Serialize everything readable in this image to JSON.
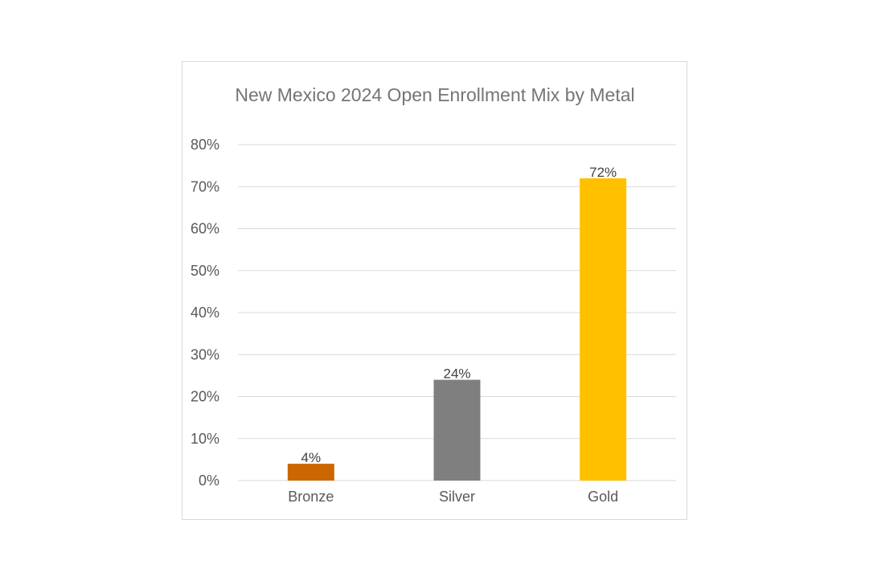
{
  "chart_data": {
    "type": "bar",
    "title": "New Mexico 2024 Open Enrollment Mix by Metal",
    "xlabel": "",
    "ylabel": "",
    "categories": [
      "Bronze",
      "Silver",
      "Gold"
    ],
    "values": [
      4,
      24,
      72
    ],
    "data_labels": [
      "4%",
      "24%",
      "72%"
    ],
    "bar_colors": [
      "#cc6600",
      "#7f7f7f",
      "#ffc000"
    ],
    "ylim": [
      0,
      80
    ],
    "yticks": [
      0,
      10,
      20,
      30,
      40,
      50,
      60,
      70,
      80
    ],
    "ytick_labels": [
      "0%",
      "10%",
      "20%",
      "30%",
      "40%",
      "50%",
      "60%",
      "70%",
      "80%"
    ],
    "grid": true,
    "legend": "none"
  }
}
